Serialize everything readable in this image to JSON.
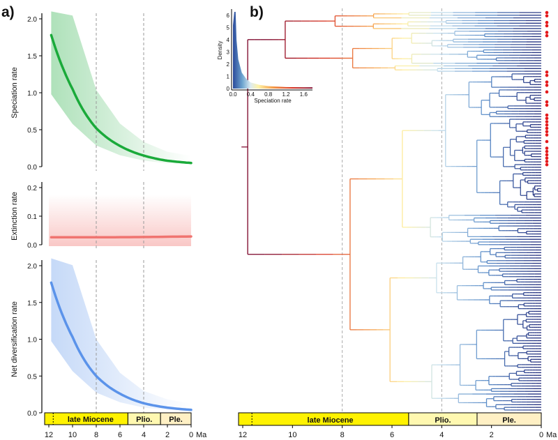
{
  "panel_labels": {
    "a": "a)",
    "b": "b)"
  },
  "colors": {
    "speciation": "#1aaa3a",
    "extinction": "#f07470",
    "net_diversification": "#5b93ea",
    "epoch_miocene": "#fff200",
    "epoch_pliocene": "#fff8b0",
    "epoch_pleistocene": "#fff0c4",
    "tip_marker": "#e41a1c"
  },
  "time_axis": {
    "ticks": [
      "12",
      "10",
      "8",
      "6",
      "4",
      "2",
      "0"
    ],
    "unit": "Ma",
    "range": [
      12,
      0
    ],
    "reference_lines": [
      8,
      4
    ]
  },
  "epochs": [
    {
      "name": "late Miocene",
      "start": 11.63,
      "end": 5.33
    },
    {
      "name": "Plio.",
      "start": 5.33,
      "end": 2.58
    },
    {
      "name": "Ple.",
      "start": 2.58,
      "end": 0
    }
  ],
  "chart_data": [
    {
      "type": "line",
      "panel": "a",
      "ylabel": "Speciation rate",
      "ylim": [
        0,
        2.0
      ],
      "yticks": [
        "0.0",
        "0.5",
        "1.0",
        "1.5",
        "2.0"
      ],
      "x": [
        11.8,
        10,
        8,
        6,
        4,
        2,
        0
      ],
      "values": [
        1.78,
        1.05,
        0.52,
        0.28,
        0.15,
        0.08,
        0.05
      ]
    },
    {
      "type": "line",
      "panel": "a",
      "ylabel": "Extinction rate",
      "ylim": [
        0,
        0.2
      ],
      "yticks": [
        "0.0",
        "0.1",
        "0.2"
      ],
      "x": [
        11.8,
        8,
        4,
        0
      ],
      "values": [
        0.026,
        0.026,
        0.027,
        0.029
      ]
    },
    {
      "type": "line",
      "panel": "a",
      "ylabel": "Net diversification rate",
      "ylim": [
        0,
        2.0
      ],
      "yticks": [
        "0.0",
        "0.5",
        "1.0",
        "1.5",
        "2.0"
      ],
      "x": [
        11.8,
        10,
        8,
        6,
        4,
        2,
        0
      ],
      "values": [
        1.77,
        1.03,
        0.5,
        0.26,
        0.13,
        0.07,
        0.04
      ]
    },
    {
      "type": "area",
      "panel": "b-inset",
      "xlabel": "Speciation rate",
      "ylabel": "Density",
      "xlim": [
        0,
        1.8
      ],
      "ylim": [
        0,
        6.3
      ],
      "xticks": [
        "0.0",
        "0.4",
        "0.8",
        "1.2",
        "1.6"
      ],
      "yticks": [
        "0",
        "1",
        "2",
        "3",
        "4",
        "5",
        "6"
      ],
      "x": [
        0.0,
        0.03,
        0.06,
        0.08,
        0.12,
        0.2,
        0.3,
        0.4,
        0.6,
        0.8,
        1.2,
        1.6,
        1.8
      ],
      "values": [
        5.2,
        6.3,
        6.3,
        4.0,
        2.4,
        1.3,
        0.8,
        0.5,
        0.3,
        0.2,
        0.12,
        0.1,
        0.1
      ]
    }
  ]
}
